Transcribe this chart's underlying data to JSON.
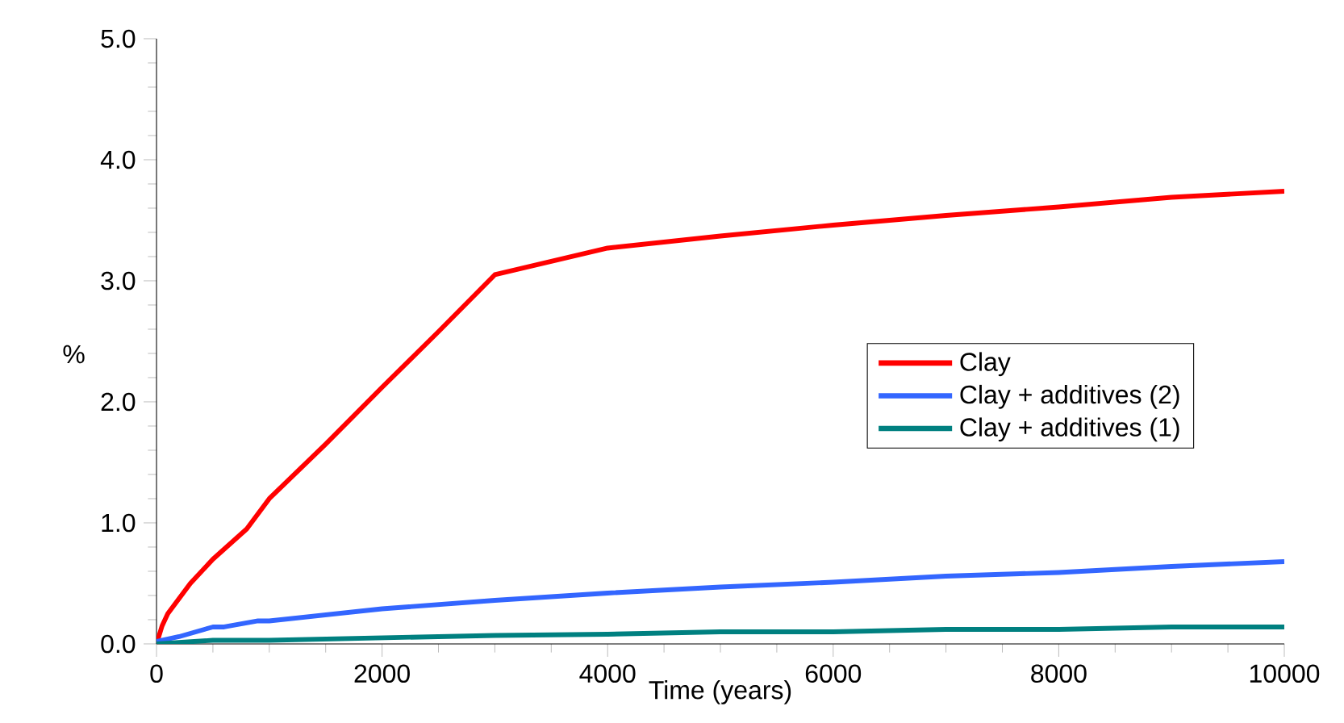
{
  "chart_data": {
    "type": "line",
    "xlabel": "Time (years)",
    "ylabel": "%",
    "xlim": [
      0,
      10000
    ],
    "ylim": [
      0,
      5
    ],
    "xticks": [
      0,
      2000,
      4000,
      6000,
      8000,
      10000
    ],
    "yticks": [
      {
        "value": 0,
        "label": "0.0"
      },
      {
        "value": 1,
        "label": "1.0"
      },
      {
        "value": 2,
        "label": "2.0"
      },
      {
        "value": 3,
        "label": "3.0"
      },
      {
        "value": 4,
        "label": "4.0"
      },
      {
        "value": 5,
        "label": "5.0"
      }
    ],
    "grid": false,
    "legend": "right",
    "marker": "none",
    "line_style": "solid",
    "series": [
      {
        "name": "Clay",
        "color": "#ff0000",
        "x": [
          0,
          50,
          100,
          300,
          500,
          800,
          1000,
          1500,
          2000,
          2500,
          3000,
          4000,
          5000,
          6000,
          7000,
          8000,
          9000,
          10000
        ],
        "values": [
          0,
          0.15,
          0.25,
          0.5,
          0.7,
          0.95,
          1.2,
          1.65,
          2.12,
          2.58,
          3.05,
          3.27,
          3.37,
          3.46,
          3.54,
          3.61,
          3.69,
          3.74
        ]
      },
      {
        "name": "Clay + additives (2)",
        "color": "#3366ff",
        "x": [
          0,
          200,
          500,
          600,
          900,
          1000,
          2000,
          3000,
          4000,
          5000,
          6000,
          7000,
          8000,
          9000,
          10000
        ],
        "values": [
          0.02,
          0.06,
          0.14,
          0.14,
          0.19,
          0.19,
          0.29,
          0.36,
          0.42,
          0.47,
          0.51,
          0.56,
          0.59,
          0.64,
          0.68
        ]
      },
      {
        "name": "Clay + additives (1)",
        "color": "#008080",
        "x": [
          0,
          500,
          1000,
          2000,
          3000,
          4000,
          5000,
          6000,
          7000,
          8000,
          9000,
          10000
        ],
        "values": [
          0,
          0.03,
          0.03,
          0.05,
          0.07,
          0.08,
          0.1,
          0.1,
          0.12,
          0.12,
          0.14,
          0.14
        ]
      }
    ]
  }
}
